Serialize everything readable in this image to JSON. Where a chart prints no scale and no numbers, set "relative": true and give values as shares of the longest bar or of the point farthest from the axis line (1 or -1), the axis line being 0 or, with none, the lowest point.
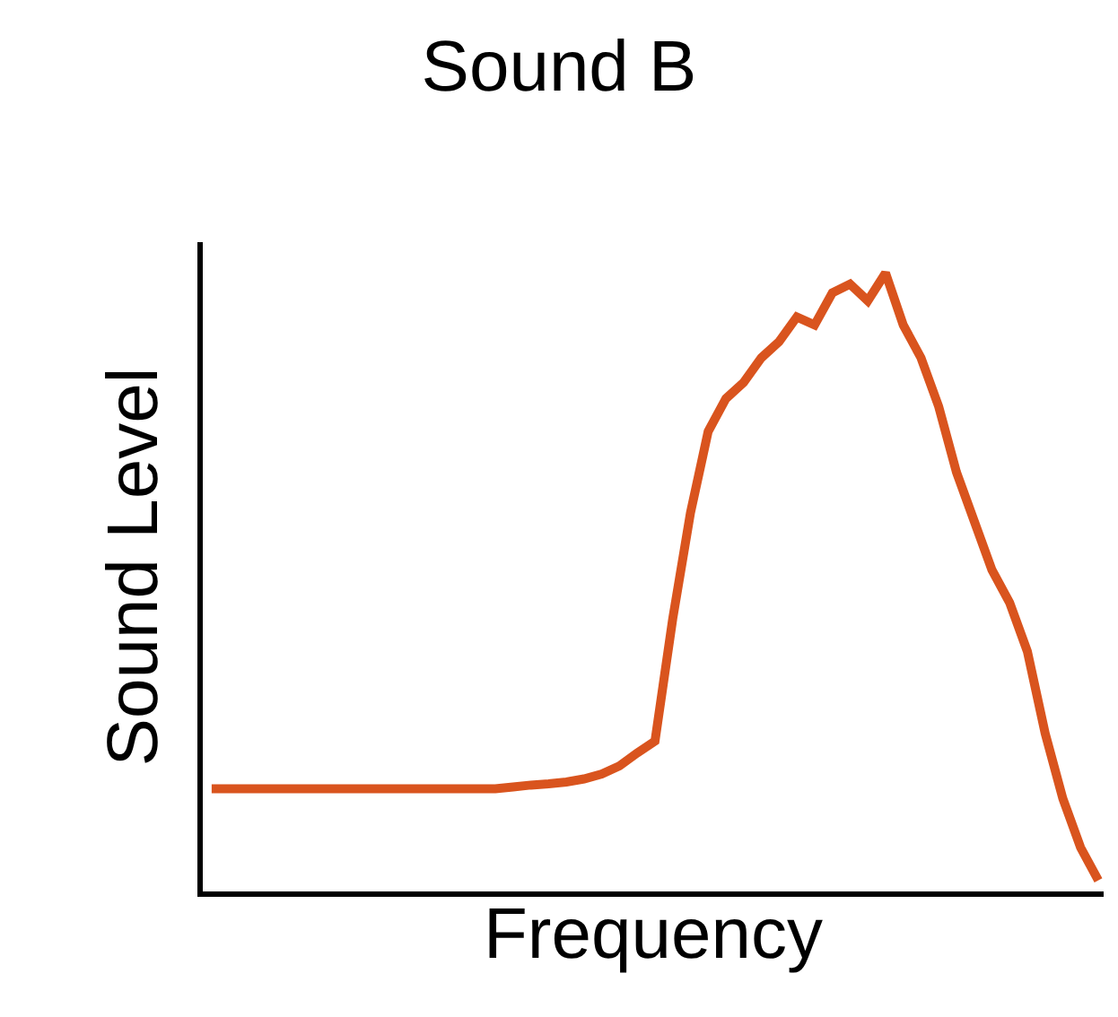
{
  "chart_data": {
    "type": "line",
    "title": "Sound B",
    "xlabel": "Frequency",
    "ylabel": "Sound Level",
    "relative": true,
    "legend": false,
    "marker": "none",
    "line_style": "solid",
    "categories": [
      null,
      null,
      null,
      null,
      null,
      null,
      null,
      null,
      null,
      null,
      null,
      null,
      null,
      null,
      null,
      null,
      null,
      null,
      null,
      null,
      null,
      null,
      null,
      null,
      null,
      null,
      null,
      null,
      null,
      null,
      null,
      null,
      null,
      null,
      null,
      null,
      null,
      null,
      null,
      null,
      null,
      null,
      null,
      null,
      null,
      null,
      null,
      null,
      null,
      null,
      null
    ],
    "series": [
      {
        "color": "#d9541e",
        "values": [
          0.166,
          0.166,
          0.166,
          0.166,
          0.166,
          0.166,
          0.166,
          0.166,
          0.166,
          0.166,
          0.166,
          0.166,
          0.166,
          0.166,
          0.166,
          0.166,
          0.166,
          0.169,
          0.172,
          0.174,
          0.177,
          0.182,
          0.19,
          0.203,
          0.224,
          0.243,
          0.441,
          0.612,
          0.744,
          0.797,
          0.823,
          0.863,
          0.889,
          0.929,
          0.916,
          0.968,
          0.982,
          0.955,
          1.0,
          0.916,
          0.863,
          0.784,
          0.678,
          0.599,
          0.52,
          0.467,
          0.388,
          0.256,
          0.15,
          0.071,
          0.018
        ]
      }
    ]
  }
}
